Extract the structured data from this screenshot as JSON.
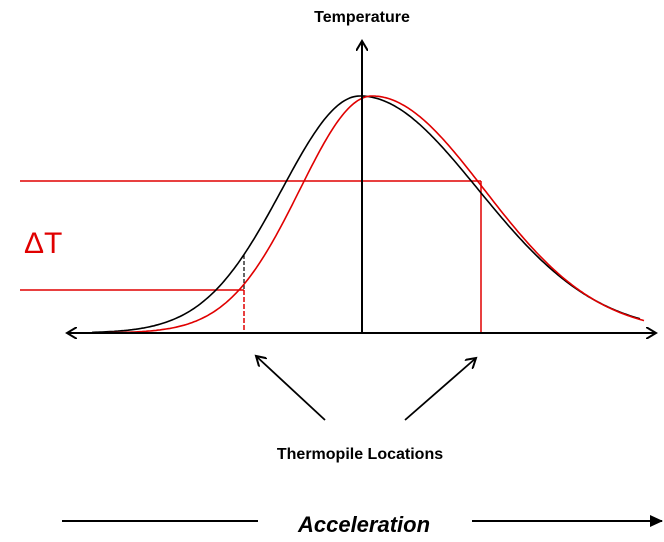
{
  "y_axis_label": "Temperature",
  "delta_label": "ΔT",
  "annotation": "Thermopile Locations",
  "bottom_label": "Acceleration"
}
